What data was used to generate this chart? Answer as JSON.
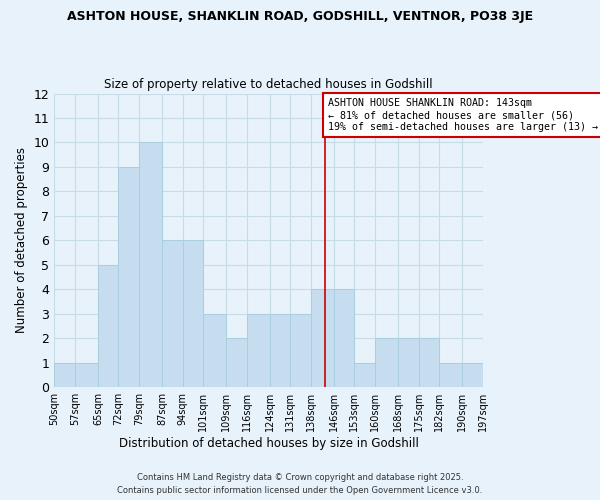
{
  "title": "ASHTON HOUSE, SHANKLIN ROAD, GODSHILL, VENTNOR, PO38 3JE",
  "subtitle": "Size of property relative to detached houses in Godshill",
  "xlabel": "Distribution of detached houses by size in Godshill",
  "ylabel": "Number of detached properties",
  "bin_edges": [
    50,
    57,
    65,
    72,
    79,
    87,
    94,
    101,
    109,
    116,
    124,
    131,
    138,
    146,
    153,
    160,
    168,
    175,
    182,
    190,
    197
  ],
  "counts": [
    1,
    1,
    5,
    9,
    10,
    6,
    6,
    3,
    2,
    3,
    3,
    3,
    4,
    4,
    1,
    2,
    2,
    2,
    1,
    1
  ],
  "bar_color": "#c5ddef",
  "bar_edge_color": "#aacde0",
  "vline_x": 143,
  "vline_color": "#cc0000",
  "annotation_text": "ASHTON HOUSE SHANKLIN ROAD: 143sqm\n← 81% of detached houses are smaller (56)\n19% of semi-detached houses are larger (13) →",
  "annotation_box_color": "#ffffff",
  "annotation_box_edge": "#cc0000",
  "ylim": [
    0,
    12
  ],
  "yticks": [
    0,
    1,
    2,
    3,
    4,
    5,
    6,
    7,
    8,
    9,
    10,
    11,
    12
  ],
  "grid_color": "#c8dce8",
  "background_color": "#e8f2fa",
  "footer_line1": "Contains HM Land Registry data © Crown copyright and database right 2025.",
  "footer_line2": "Contains public sector information licensed under the Open Government Licence v3.0."
}
